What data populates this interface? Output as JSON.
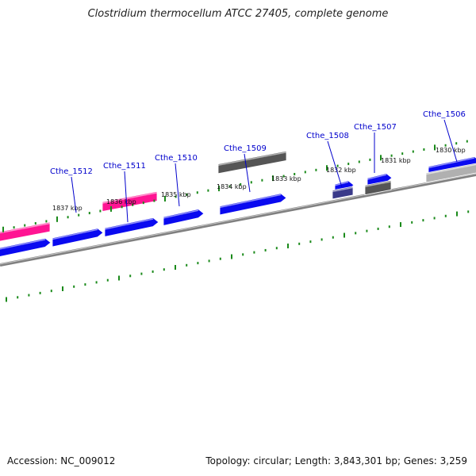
{
  "header": {
    "title": "Clostridium thermocellum ATCC 27405, complete genome"
  },
  "footer": {
    "accession": "Accession: NC_009012",
    "topology": "Topology: circular; Length: 3,843,301 bp; Genes: 3,259"
  },
  "colors": {
    "forward_cds": "#0a0af0",
    "rrna_pink": "#ff1493",
    "dark_gray_feature": "#555555",
    "purple_feature": "#3a3a8a",
    "light_gray_feature": "#b0b0b0",
    "backbone": "#808080",
    "tick_green": "#1a8a1a",
    "gene_label": "#0000cc"
  },
  "gene_labels": [
    "Cthe_1512",
    "Cthe_1511",
    "Cthe_1510",
    "Cthe_1509",
    "Cthe_1508",
    "Cthe_1507",
    "Cthe_1506"
  ],
  "kbp_labels": [
    "1837 kbp",
    "1836 kbp",
    "1835 kbp",
    "1834 kbp",
    "1833 kbp",
    "1832 kbp",
    "1831 kbp",
    "1830 kbp"
  ]
}
